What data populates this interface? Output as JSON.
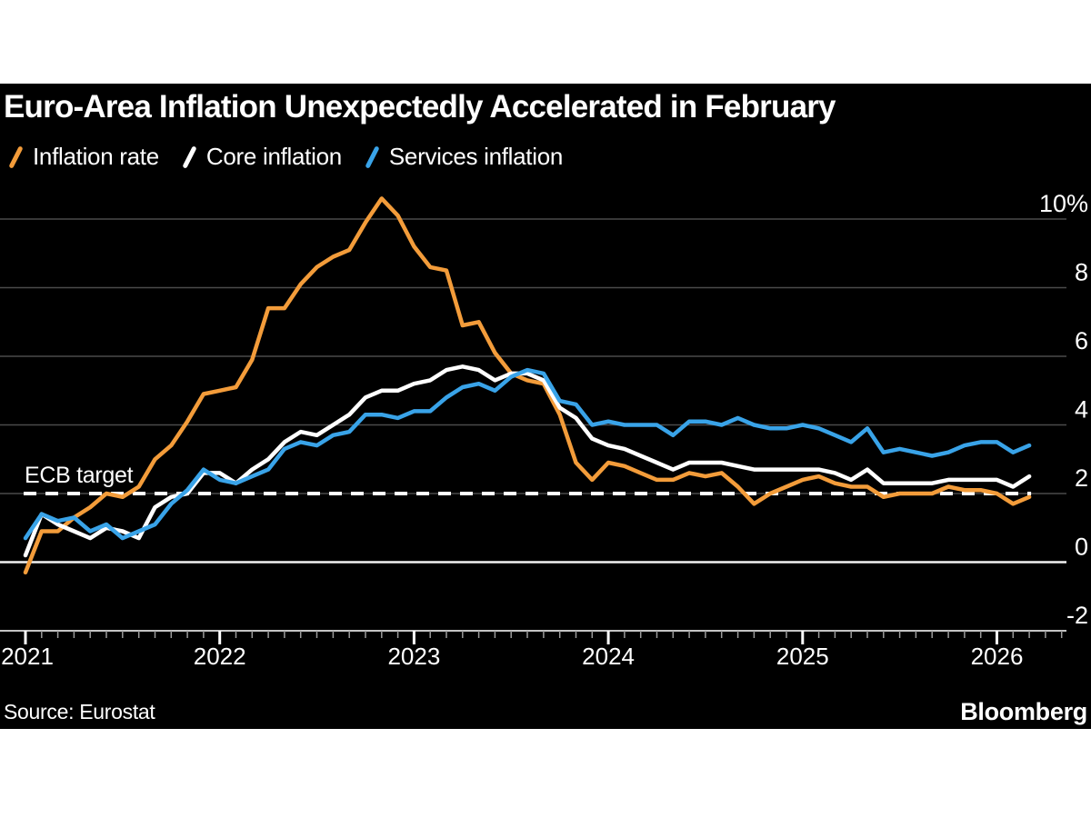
{
  "header": {
    "title": "Euro-Area Inflation Unexpectedly Accelerated in February"
  },
  "legend": {
    "items": [
      {
        "label": "Inflation rate"
      },
      {
        "label": "Core inflation"
      },
      {
        "label": "Services inflation"
      }
    ]
  },
  "annotation": {
    "ecb_target_label": "ECB target"
  },
  "footer": {
    "source": "Source: Eurostat",
    "brand": "Bloomberg"
  },
  "colors": {
    "page_background": "#ffffff",
    "card_background": "#000000",
    "text": "#ffffff",
    "gridline": "#4b4b4b",
    "zero_line": "#f2f2f2",
    "axis_line": "#c4c4c4",
    "minor_tick": "#9b9b9b",
    "major_tick": "#ffffff",
    "target_line": "#ffffff"
  },
  "chart_data": {
    "type": "line",
    "title": "Euro-Area Inflation Unexpectedly Accelerated in February",
    "unit": "% year-over-year",
    "frequency": "monthly",
    "x_start": "2020-12",
    "x_end": "2026-02",
    "legend_position": "top",
    "categories": [
      "2020-12",
      "2021-01",
      "2021-02",
      "2021-03",
      "2021-04",
      "2021-05",
      "2021-06",
      "2021-07",
      "2021-08",
      "2021-09",
      "2021-10",
      "2021-11",
      "2021-12",
      "2022-01",
      "2022-02",
      "2022-03",
      "2022-04",
      "2022-05",
      "2022-06",
      "2022-07",
      "2022-08",
      "2022-09",
      "2022-10",
      "2022-11",
      "2022-12",
      "2023-01",
      "2023-02",
      "2023-03",
      "2023-04",
      "2023-05",
      "2023-06",
      "2023-07",
      "2023-08",
      "2023-09",
      "2023-10",
      "2023-11",
      "2023-12",
      "2024-01",
      "2024-02",
      "2024-03",
      "2024-04",
      "2024-05",
      "2024-06",
      "2024-07",
      "2024-08",
      "2024-09",
      "2024-10",
      "2024-11",
      "2024-12",
      "2025-01",
      "2025-02",
      "2025-03",
      "2025-04",
      "2025-05",
      "2025-06",
      "2025-07",
      "2025-08",
      "2025-09",
      "2025-10",
      "2025-11",
      "2025-12",
      "2026-01",
      "2026-02"
    ],
    "series": [
      {
        "name": "Inflation rate",
        "color": "#F39C3A",
        "values": [
          -0.3,
          0.9,
          0.9,
          1.3,
          1.6,
          2.0,
          1.9,
          2.2,
          3.0,
          3.4,
          4.1,
          4.9,
          5.0,
          5.1,
          5.9,
          7.4,
          7.4,
          8.1,
          8.6,
          8.9,
          9.1,
          9.9,
          10.6,
          10.1,
          9.2,
          8.6,
          8.5,
          6.9,
          7.0,
          6.1,
          5.5,
          5.3,
          5.2,
          4.3,
          2.9,
          2.4,
          2.9,
          2.8,
          2.6,
          2.4,
          2.4,
          2.6,
          2.5,
          2.6,
          2.2,
          1.7,
          2.0,
          2.2,
          2.4,
          2.5,
          2.3,
          2.2,
          2.2,
          1.9,
          2.0,
          2.0,
          2.0,
          2.2,
          2.1,
          2.1,
          2.0,
          1.7,
          1.9
        ]
      },
      {
        "name": "Core inflation",
        "color": "#FFFFFF",
        "values": [
          0.2,
          1.4,
          1.1,
          0.9,
          0.7,
          1.0,
          0.9,
          0.7,
          1.6,
          1.9,
          2.0,
          2.6,
          2.6,
          2.3,
          2.7,
          3.0,
          3.5,
          3.8,
          3.7,
          4.0,
          4.3,
          4.8,
          5.0,
          5.0,
          5.2,
          5.3,
          5.6,
          5.7,
          5.6,
          5.3,
          5.5,
          5.5,
          5.3,
          4.5,
          4.2,
          3.6,
          3.4,
          3.3,
          3.1,
          2.9,
          2.7,
          2.9,
          2.9,
          2.9,
          2.8,
          2.7,
          2.7,
          2.7,
          2.7,
          2.7,
          2.6,
          2.4,
          2.7,
          2.3,
          2.3,
          2.3,
          2.3,
          2.4,
          2.4,
          2.4,
          2.4,
          2.2,
          2.5
        ]
      },
      {
        "name": "Services inflation",
        "color": "#39A3E8",
        "values": [
          0.7,
          1.4,
          1.2,
          1.3,
          0.9,
          1.1,
          0.7,
          0.9,
          1.1,
          1.7,
          2.1,
          2.7,
          2.4,
          2.3,
          2.5,
          2.7,
          3.3,
          3.5,
          3.4,
          3.7,
          3.8,
          4.3,
          4.3,
          4.2,
          4.4,
          4.4,
          4.8,
          5.1,
          5.2,
          5.0,
          5.4,
          5.6,
          5.5,
          4.7,
          4.6,
          4.0,
          4.1,
          4.0,
          4.0,
          4.0,
          3.7,
          4.1,
          4.1,
          4.0,
          4.2,
          4.0,
          3.9,
          3.9,
          4.0,
          3.9,
          3.7,
          3.5,
          3.9,
          3.2,
          3.3,
          3.2,
          3.1,
          3.2,
          3.4,
          3.5,
          3.5,
          3.2,
          3.4
        ]
      }
    ],
    "y_axis": {
      "ticks": [
        {
          "value": 10,
          "label": "10%"
        },
        {
          "value": 8,
          "label": "8"
        },
        {
          "value": 6,
          "label": "6"
        },
        {
          "value": 4,
          "label": "4"
        },
        {
          "value": 2,
          "label": "2"
        },
        {
          "value": 0,
          "label": "0"
        },
        {
          "value": -2,
          "label": "-2"
        }
      ],
      "range": [
        -2.6,
        10.9
      ],
      "gridlines": true,
      "labels_position": "right"
    },
    "x_axis": {
      "ticks": [
        {
          "label": "2021"
        },
        {
          "label": "2022"
        },
        {
          "label": "2023"
        },
        {
          "label": "2024"
        },
        {
          "label": "2025"
        },
        {
          "label": "2026"
        }
      ],
      "minor_ticks": "monthly"
    },
    "annotations": [
      {
        "type": "hline",
        "label": "ECB target",
        "value": 2,
        "line_style": "dashed",
        "color": "#ffffff"
      }
    ]
  }
}
